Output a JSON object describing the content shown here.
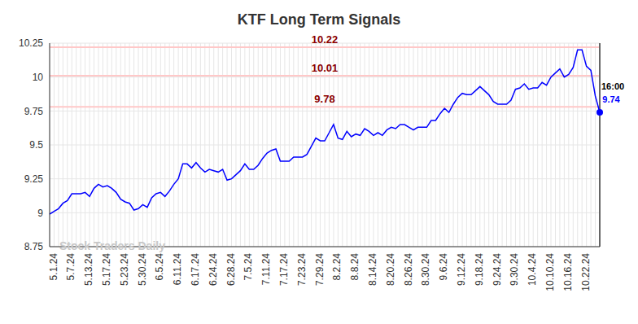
{
  "chart_data": {
    "type": "line",
    "title": "KTF Long Term Signals",
    "watermark": "Stock Traders Daily",
    "categories": [
      "5.1.24",
      null,
      null,
      null,
      "5.7.24",
      null,
      null,
      null,
      "5.13.24",
      null,
      null,
      null,
      "5.17.24",
      null,
      null,
      null,
      "5.23.24",
      null,
      null,
      null,
      "5.30.24",
      null,
      null,
      null,
      "6.5.24",
      null,
      null,
      null,
      "6.11.24",
      null,
      null,
      null,
      "6.17.24",
      null,
      null,
      null,
      "6.24.24",
      null,
      null,
      null,
      "6.28.24",
      null,
      null,
      null,
      "7.5.24",
      null,
      null,
      null,
      "7.11.24",
      null,
      null,
      null,
      "7.17.24",
      null,
      null,
      null,
      "7.23.24",
      null,
      null,
      null,
      "7.29.24",
      null,
      null,
      null,
      "8.2.24",
      null,
      null,
      null,
      "8.8.24",
      null,
      null,
      null,
      "8.14.24",
      null,
      null,
      null,
      "8.20.24",
      null,
      null,
      null,
      "8.26.24",
      null,
      null,
      null,
      "8.30.24",
      null,
      null,
      null,
      "9.6.24",
      null,
      null,
      null,
      "9.12.24",
      null,
      null,
      null,
      "9.18.24",
      null,
      null,
      null,
      "9.24.24",
      null,
      null,
      null,
      "9.30.24",
      null,
      null,
      null,
      "10.4.24",
      null,
      null,
      null,
      "10.10.24",
      null,
      null,
      null,
      "10.16.24",
      null,
      null,
      null,
      "10.22.24",
      null,
      null,
      null,
      null
    ],
    "values": [
      8.99,
      9.01,
      9.03,
      9.07,
      9.09,
      9.14,
      9.14,
      9.14,
      9.15,
      9.12,
      9.18,
      9.21,
      9.19,
      9.2,
      9.18,
      9.15,
      9.1,
      9.08,
      9.07,
      9.02,
      9.03,
      9.06,
      9.04,
      9.11,
      9.14,
      9.15,
      9.12,
      9.16,
      9.21,
      9.25,
      9.36,
      9.36,
      9.33,
      9.37,
      9.33,
      9.3,
      9.32,
      9.31,
      9.3,
      9.32,
      9.24,
      9.25,
      9.28,
      9.31,
      9.36,
      9.32,
      9.32,
      9.35,
      9.4,
      9.44,
      9.46,
      9.47,
      9.38,
      9.38,
      9.38,
      9.41,
      9.41,
      9.41,
      9.43,
      9.49,
      9.55,
      9.53,
      9.53,
      9.59,
      9.65,
      9.55,
      9.54,
      9.6,
      9.56,
      9.58,
      9.57,
      9.62,
      9.6,
      9.57,
      9.59,
      9.57,
      9.61,
      9.63,
      9.62,
      9.65,
      9.65,
      9.63,
      9.61,
      9.63,
      9.63,
      9.63,
      9.68,
      9.68,
      9.73,
      9.77,
      9.74,
      9.8,
      9.85,
      9.88,
      9.87,
      9.87,
      9.9,
      9.93,
      9.9,
      9.87,
      9.82,
      9.8,
      9.8,
      9.8,
      9.83,
      9.91,
      9.92,
      9.95,
      9.91,
      9.92,
      9.92,
      9.96,
      9.94,
      10.0,
      10.03,
      10.06,
      10.0,
      10.02,
      10.07,
      10.2,
      10.2,
      10.08,
      10.05,
      9.86,
      9.74
    ],
    "color": "#0000ff",
    "levels": [
      10.22,
      10.01,
      9.78
    ],
    "last_point": {
      "time": "16:00",
      "value": 9.74
    },
    "ylim": [
      8.75,
      10.25
    ],
    "yticks": [
      8.75,
      9,
      9.25,
      9.5,
      9.75,
      10,
      10.25
    ],
    "grid": true
  }
}
